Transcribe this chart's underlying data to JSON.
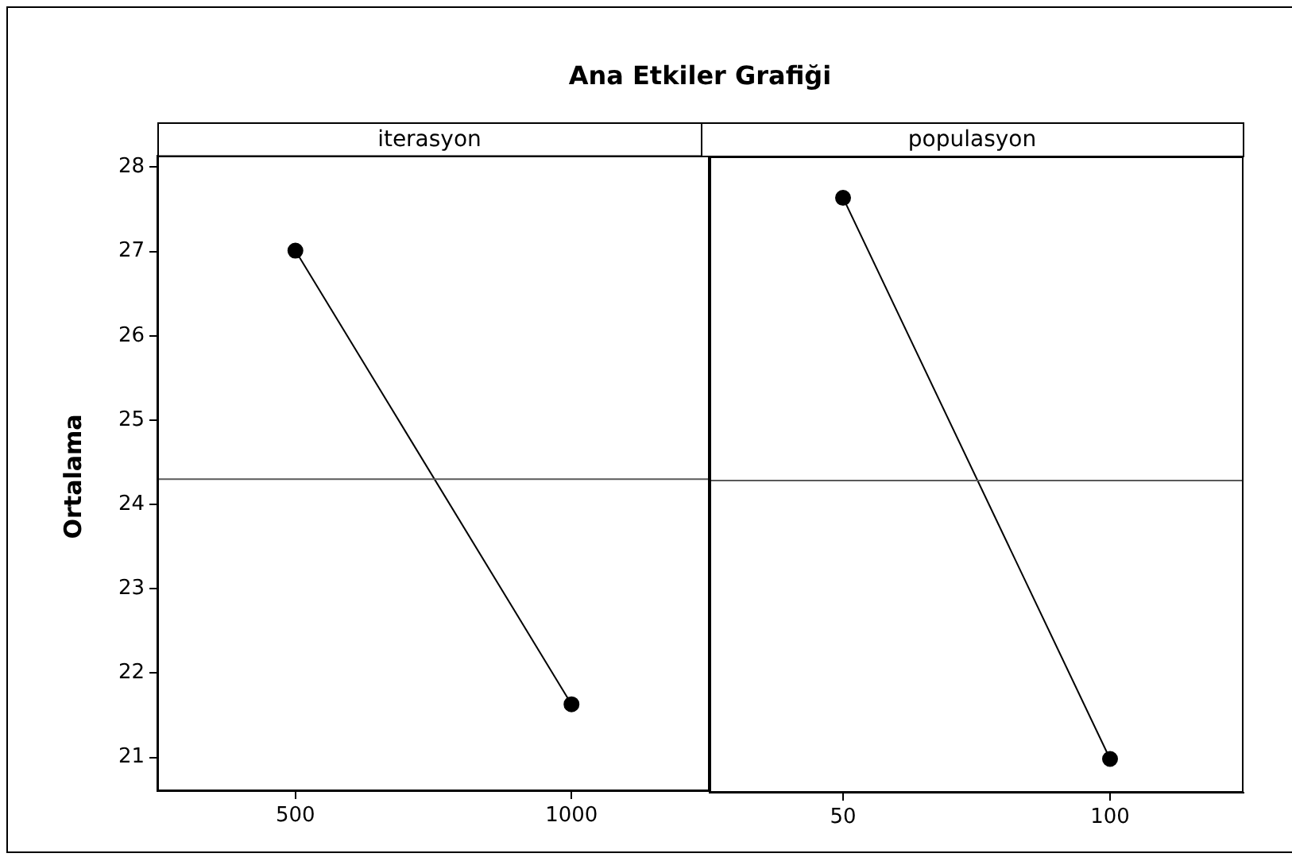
{
  "chart_data": [
    {
      "type": "line",
      "title": "Ana Etkiler Grafiği",
      "subtitle": "iterasyon",
      "ylabel": "Ortalama",
      "categories": [
        "500",
        "1000"
      ],
      "series": [
        {
          "color": "#000000",
          "values": [
            27.01,
            21.63
          ]
        }
      ],
      "ylim": [
        20.6,
        28.14
      ],
      "yticks": [
        21,
        22,
        23,
        24,
        25,
        26,
        27,
        28
      ],
      "ref_lines": [
        {
          "axis": "y",
          "value": 24.3,
          "color": "#595959"
        }
      ],
      "marker": "circle",
      "line_style": "solid",
      "grid": false
    },
    {
      "type": "line",
      "subtitle": "populasyon",
      "categories": [
        "50",
        "100"
      ],
      "series": [
        {
          "color": "#000000",
          "values": [
            27.65,
            21.0
          ]
        }
      ],
      "ylim": [
        20.6,
        28.14
      ],
      "yticks": [
        21,
        22,
        23,
        24,
        25,
        26,
        27,
        28
      ],
      "ref_lines": [
        {
          "axis": "y",
          "value": 24.3,
          "color": "#595959"
        }
      ],
      "marker": "circle",
      "line_style": "solid",
      "grid": false,
      "tick_labels": "x"
    }
  ]
}
